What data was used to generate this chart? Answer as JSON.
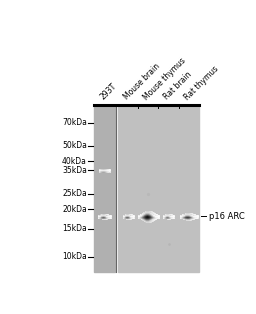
{
  "fig_width": 2.56,
  "fig_height": 3.14,
  "dpi": 100,
  "bg_color": "#ffffff",
  "lane_labels": [
    "293T",
    "Mouse brain",
    "Mouse thymus",
    "Rat brain",
    "Rat thymus"
  ],
  "mw_labels": [
    "70kDa",
    "50kDa",
    "40kDa",
    "35kDa",
    "25kDa",
    "20kDa",
    "15kDa",
    "10kDa"
  ],
  "mw_values": [
    70,
    50,
    40,
    35,
    25,
    20,
    15,
    10
  ],
  "annotation": "p16 ARC",
  "annotation_mw": 18,
  "left_panel_bg": "#b0b0b0",
  "right_panel_bg": "#c0c0c0",
  "band_color": "#111111",
  "log_min": 0.903,
  "log_max": 1.954
}
